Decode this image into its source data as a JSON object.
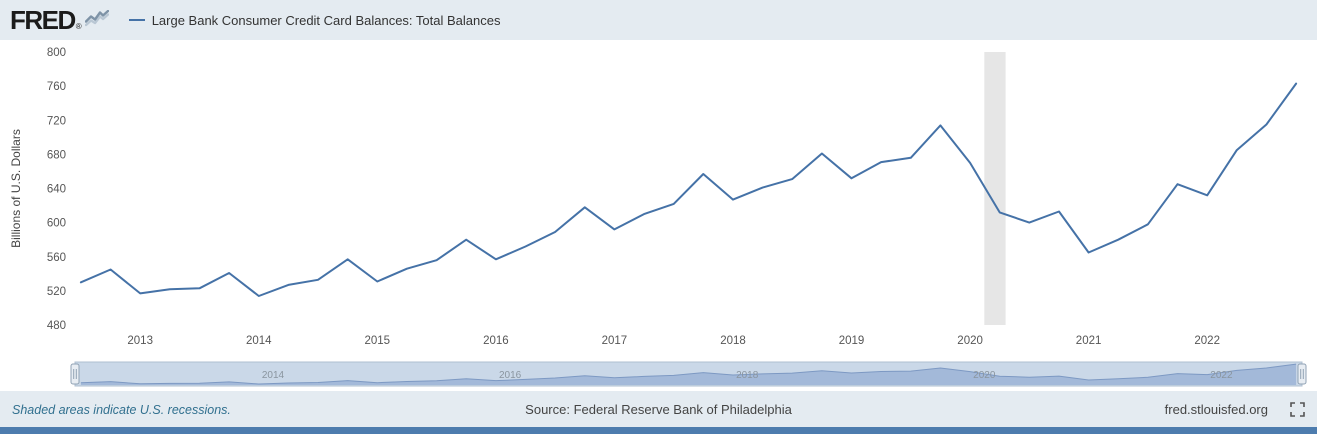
{
  "header": {
    "logo_text": "FRED",
    "logo_registered": "®",
    "legend_label": "Large Bank Consumer Credit Card Balances: Total Balances"
  },
  "footer": {
    "recession_note": "Shaded areas indicate U.S. recessions.",
    "source": "Source: Federal Reserve Bank of Philadelphia",
    "site_link": "fred.stlouisfed.org"
  },
  "colors": {
    "line": "#4572a7",
    "recession_band": "#e6e6e6",
    "navigator_fill": "#a3b9d9",
    "navigator_line": "#7d99c3",
    "bottom_bar": "#4d7cae",
    "header_bg": "#e4ebf1",
    "recessions_link": "#31708f"
  },
  "chart_data": {
    "type": "line",
    "title": "Large Bank Consumer Credit Card Balances: Total Balances",
    "ylabel": "Billions of U.S. Dollars",
    "xlabel": "",
    "ylim": [
      480,
      800
    ],
    "yticks": [
      480,
      520,
      560,
      600,
      640,
      680,
      720,
      760,
      800
    ],
    "xlim": [
      2012.45,
      2022.8
    ],
    "xticks": [
      2013,
      2014,
      2015,
      2016,
      2017,
      2018,
      2019,
      2020,
      2021,
      2022
    ],
    "grid": false,
    "legend_position": "top-left",
    "line_color": "#4572a7",
    "recession_color": "#e6e6e6",
    "recession_bands": [
      {
        "start": 2020.12,
        "end": 2020.3
      }
    ],
    "navigator_labels": [
      "2014",
      "2016",
      "2018",
      "2020",
      "2022"
    ],
    "series": [
      {
        "name": "Large Bank Consumer Credit Card Balances: Total Balances",
        "x": [
          2012.5,
          2012.75,
          2013.0,
          2013.25,
          2013.5,
          2013.75,
          2014.0,
          2014.25,
          2014.5,
          2014.75,
          2015.0,
          2015.25,
          2015.5,
          2015.75,
          2016.0,
          2016.25,
          2016.5,
          2016.75,
          2017.0,
          2017.25,
          2017.5,
          2017.75,
          2018.0,
          2018.25,
          2018.5,
          2018.75,
          2019.0,
          2019.25,
          2019.5,
          2019.75,
          2020.0,
          2020.25,
          2020.5,
          2020.75,
          2021.0,
          2021.25,
          2021.5,
          2021.75,
          2022.0,
          2022.25,
          2022.5,
          2022.75
        ],
        "values": [
          530,
          545,
          517,
          522,
          523,
          541,
          514,
          527,
          533,
          557,
          531,
          546,
          556,
          580,
          557,
          572,
          589,
          618,
          592,
          610,
          622,
          657,
          627,
          641,
          651,
          681,
          652,
          671,
          676,
          714,
          670,
          612,
          600,
          613,
          565,
          580,
          598,
          645,
          632,
          685,
          715,
          763
        ]
      }
    ]
  }
}
